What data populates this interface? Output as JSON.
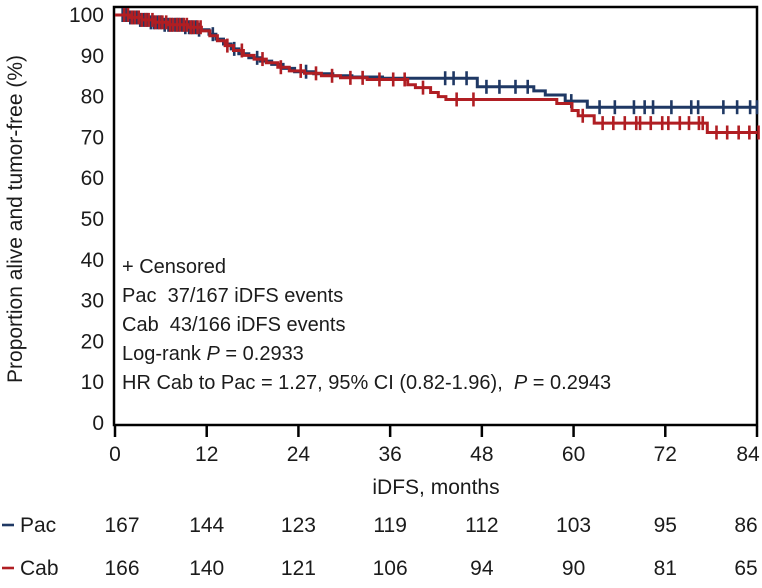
{
  "chart_data": {
    "type": "line",
    "subtype": "kaplan-meier-step",
    "title": "",
    "xlabel": "iDFS, months",
    "ylabel": "Proportion alive and tumor-free (%)",
    "xlim": [
      0,
      84
    ],
    "ylim": [
      0,
      100
    ],
    "xticks": [
      0,
      12,
      24,
      36,
      48,
      60,
      72,
      84
    ],
    "yticks": [
      0,
      10,
      20,
      30,
      40,
      50,
      60,
      70,
      80,
      90,
      100
    ],
    "grid": false,
    "frame": true,
    "legend_position": "none",
    "annotations": [
      [
        {
          "text": "+ Censored",
          "italic": false
        }
      ],
      [
        {
          "text": "Pac  37/167 iDFS events",
          "italic": false
        }
      ],
      [
        {
          "text": "Cab  43/166 iDFS events",
          "italic": false
        }
      ],
      [
        {
          "text": "Log-rank ",
          "italic": false
        },
        {
          "text": "P",
          "italic": true
        },
        {
          "text": " = 0.2933",
          "italic": false
        }
      ],
      [
        {
          "text": "HR Cab to Pac = 1.27, 95% CI (0.82-1.96),  ",
          "italic": false
        },
        {
          "text": "P",
          "italic": true
        },
        {
          "text": " = 0.2943",
          "italic": false
        }
      ]
    ],
    "series": [
      {
        "name": "Pac",
        "color": "#1f3864",
        "events": "37/167",
        "steps": [
          [
            0,
            100
          ],
          [
            1.8,
            99.4
          ],
          [
            3,
            98.8
          ],
          [
            4.5,
            98.2
          ],
          [
            6.5,
            97.6
          ],
          [
            9,
            97
          ],
          [
            11,
            96.4
          ],
          [
            12.3,
            95.3
          ],
          [
            13.2,
            94.1
          ],
          [
            14.2,
            92.9
          ],
          [
            15.2,
            91.7
          ],
          [
            16.2,
            90.5
          ],
          [
            17.5,
            89.5
          ],
          [
            19,
            88.7
          ],
          [
            20.5,
            87.9
          ],
          [
            22,
            86.9
          ],
          [
            23.5,
            86.1
          ],
          [
            26,
            85.6
          ],
          [
            28.5,
            85.1
          ],
          [
            31,
            84.8
          ],
          [
            35,
            84.5
          ],
          [
            47.4,
            82.4
          ],
          [
            54.8,
            81.4
          ],
          [
            56.3,
            80.4
          ],
          [
            58.9,
            78.9
          ],
          [
            61.8,
            77.4
          ],
          [
            84,
            77.4
          ]
        ],
        "censors": [
          1.0,
          1.5,
          2.0,
          2.4,
          2.9,
          3.3,
          3.8,
          4.2,
          4.7,
          5.1,
          5.6,
          6.0,
          6.5,
          7.0,
          7.4,
          7.9,
          8.3,
          8.8,
          9.2,
          9.7,
          10.1,
          10.6,
          11.0,
          12.8,
          15.6,
          18.6,
          25.0,
          43.2,
          44.3,
          46.0,
          48.6,
          50.3,
          52.4,
          54.0,
          59.7,
          63.4,
          65.4,
          67.9,
          69.3,
          70.4,
          72.8,
          75.4,
          76.3,
          79.6,
          81.4,
          83.1,
          84.0
        ]
      },
      {
        "name": "Cab",
        "color": "#b01e23",
        "events": "43/166",
        "steps": [
          [
            0,
            100
          ],
          [
            2,
            99.4
          ],
          [
            3.5,
            98.8
          ],
          [
            5,
            98.2
          ],
          [
            7,
            97.6
          ],
          [
            9.5,
            97
          ],
          [
            11.3,
            96.1
          ],
          [
            12.4,
            94.9
          ],
          [
            13.4,
            93.7
          ],
          [
            14.4,
            92.5
          ],
          [
            15.5,
            91.3
          ],
          [
            16.8,
            90.1
          ],
          [
            18.2,
            89.2
          ],
          [
            19.8,
            88.3
          ],
          [
            21.3,
            87.2
          ],
          [
            22.8,
            86.3
          ],
          [
            24.8,
            85.7
          ],
          [
            27,
            85.1
          ],
          [
            29.5,
            84.6
          ],
          [
            33,
            84.2
          ],
          [
            38.3,
            82.9
          ],
          [
            39.3,
            82.2
          ],
          [
            41.3,
            81
          ],
          [
            42.3,
            80
          ],
          [
            43.3,
            79.3
          ],
          [
            57.8,
            78.3
          ],
          [
            59.8,
            76.6
          ],
          [
            60.6,
            75.3
          ],
          [
            62.7,
            73.5
          ],
          [
            77.5,
            71.2
          ],
          [
            84,
            71.2
          ]
        ],
        "censors": [
          1.2,
          1.7,
          2.2,
          2.6,
          3.1,
          3.5,
          4.0,
          4.4,
          4.9,
          5.3,
          5.8,
          6.2,
          6.7,
          7.2,
          7.6,
          8.1,
          8.5,
          9.0,
          9.4,
          9.9,
          10.3,
          10.8,
          11.2,
          14.7,
          16.6,
          19.3,
          21.7,
          24.3,
          26.3,
          28.4,
          30.8,
          32.4,
          34.6,
          36.4,
          37.9,
          40.3,
          44.7,
          46.9,
          61.2,
          63.8,
          65.2,
          66.7,
          68.2,
          68.7,
          70.1,
          71.6,
          72.4,
          73.9,
          75.1,
          76.4,
          76.9,
          78.7,
          80.1,
          81.6,
          83.0,
          84.2
        ]
      }
    ],
    "risk_table": {
      "rows": [
        {
          "name": "Pac",
          "counts": [
            167,
            144,
            123,
            119,
            112,
            103,
            95,
            86
          ]
        },
        {
          "name": "Cab",
          "counts": [
            166,
            140,
            121,
            106,
            94,
            90,
            81,
            65
          ]
        }
      ]
    }
  },
  "colors": {
    "pac": "#1f3864",
    "cab": "#b01e23",
    "axis": "#000000",
    "text": "#1b1b1b",
    "background": "#ffffff"
  }
}
